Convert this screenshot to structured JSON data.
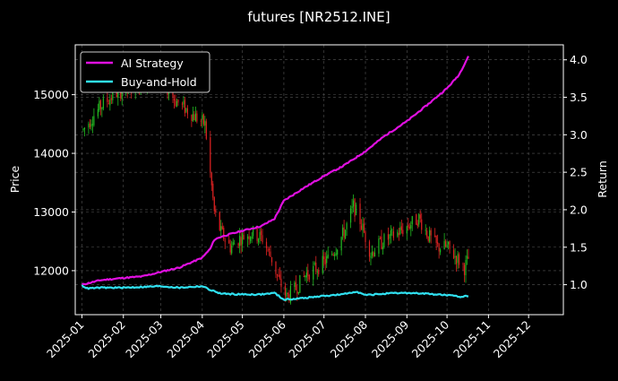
{
  "chart_data": {
    "type": "candlestick+line",
    "title": "futures [NR2512.INE]",
    "ylabel_left": "Price",
    "ylabel_right": "Return",
    "x_ticks": [
      "2025-01",
      "2025-02",
      "2025-03",
      "2025-04",
      "2025-05",
      "2025-06",
      "2025-07",
      "2025-08",
      "2025-09",
      "2025-10",
      "2025-11",
      "2025-12"
    ],
    "xlim": [
      "2024-12-27",
      "2025-12-27"
    ],
    "ylim_left": [
      11250,
      15850
    ],
    "yticks_left": [
      12000,
      13000,
      14000,
      15000
    ],
    "ylim_right": [
      0.6,
      4.2
    ],
    "yticks_right": [
      1.0,
      1.5,
      2.0,
      2.5,
      3.0,
      3.5,
      4.0
    ],
    "grid": true,
    "legend_position": "top-left",
    "colors": {
      "up": "#22bb22",
      "down": "#dd2222",
      "ai": "#e010e0",
      "bh": "#30e0f0",
      "grid": "#555555"
    },
    "price_anchors": [
      [
        "2025-01-02",
        14400
      ],
      [
        "2025-01-10",
        14650
      ],
      [
        "2025-01-15",
        14800
      ],
      [
        "2025-01-20",
        14900
      ],
      [
        "2025-01-28",
        15050
      ],
      [
        "2025-02-05",
        15100
      ],
      [
        "2025-02-15",
        15200
      ],
      [
        "2025-02-25",
        15300
      ],
      [
        "2025-03-05",
        15150
      ],
      [
        "2025-03-12",
        14900
      ],
      [
        "2025-03-20",
        14750
      ],
      [
        "2025-03-28",
        14600
      ],
      [
        "2025-04-03",
        14500
      ],
      [
        "2025-04-07",
        13650
      ],
      [
        "2025-04-10",
        13000
      ],
      [
        "2025-04-15",
        12650
      ],
      [
        "2025-04-22",
        12400
      ],
      [
        "2025-04-29",
        12550
      ],
      [
        "2025-05-08",
        12650
      ],
      [
        "2025-05-16",
        12550
      ],
      [
        "2025-05-23",
        12200
      ],
      [
        "2025-05-28",
        11850
      ],
      [
        "2025-06-03",
        11550
      ],
      [
        "2025-06-10",
        11700
      ],
      [
        "2025-06-18",
        11950
      ],
      [
        "2025-06-26",
        12050
      ],
      [
        "2025-07-04",
        12200
      ],
      [
        "2025-07-10",
        12400
      ],
      [
        "2025-07-17",
        12700
      ],
      [
        "2025-07-23",
        13100
      ],
      [
        "2025-07-28",
        12850
      ],
      [
        "2025-08-05",
        12300
      ],
      [
        "2025-08-14",
        12500
      ],
      [
        "2025-08-22",
        12600
      ],
      [
        "2025-09-01",
        12750
      ],
      [
        "2025-09-10",
        12900
      ],
      [
        "2025-09-17",
        12600
      ],
      [
        "2025-09-24",
        12400
      ],
      [
        "2025-10-01",
        12400
      ],
      [
        "2025-10-09",
        12200
      ],
      [
        "2025-10-14",
        12050
      ],
      [
        "2025-10-17",
        12200
      ]
    ],
    "series": [
      {
        "name": "AI Strategy",
        "points": [
          [
            "2025-01-01",
            1.0
          ],
          [
            "2025-01-15",
            1.06
          ],
          [
            "2025-02-01",
            1.09
          ],
          [
            "2025-02-15",
            1.11
          ],
          [
            "2025-03-01",
            1.17
          ],
          [
            "2025-03-15",
            1.23
          ],
          [
            "2025-04-01",
            1.36
          ],
          [
            "2025-04-07",
            1.48
          ],
          [
            "2025-04-10",
            1.6
          ],
          [
            "2025-04-15",
            1.64
          ],
          [
            "2025-05-01",
            1.72
          ],
          [
            "2025-05-15",
            1.78
          ],
          [
            "2025-05-25",
            1.88
          ],
          [
            "2025-06-01",
            2.12
          ],
          [
            "2025-06-15",
            2.28
          ],
          [
            "2025-07-01",
            2.45
          ],
          [
            "2025-07-15",
            2.58
          ],
          [
            "2025-08-01",
            2.78
          ],
          [
            "2025-08-15",
            2.98
          ],
          [
            "2025-09-01",
            3.18
          ],
          [
            "2025-09-15",
            3.38
          ],
          [
            "2025-10-01",
            3.62
          ],
          [
            "2025-10-10",
            3.8
          ],
          [
            "2025-10-17",
            4.05
          ]
        ]
      },
      {
        "name": "Buy-and-Hold",
        "points": [
          [
            "2025-01-01",
            0.99
          ],
          [
            "2025-01-05",
            0.95
          ],
          [
            "2025-01-15",
            0.96
          ],
          [
            "2025-02-01",
            0.96
          ],
          [
            "2025-02-15",
            0.97
          ],
          [
            "2025-03-01",
            0.98
          ],
          [
            "2025-03-15",
            0.96
          ],
          [
            "2025-04-01",
            0.98
          ],
          [
            "2025-04-07",
            0.93
          ],
          [
            "2025-04-15",
            0.88
          ],
          [
            "2025-05-01",
            0.87
          ],
          [
            "2025-05-15",
            0.87
          ],
          [
            "2025-05-25",
            0.89
          ],
          [
            "2025-06-01",
            0.8
          ],
          [
            "2025-06-15",
            0.82
          ],
          [
            "2025-07-01",
            0.85
          ],
          [
            "2025-07-15",
            0.87
          ],
          [
            "2025-07-25",
            0.91
          ],
          [
            "2025-08-01",
            0.86
          ],
          [
            "2025-08-15",
            0.88
          ],
          [
            "2025-09-01",
            0.89
          ],
          [
            "2025-09-15",
            0.88
          ],
          [
            "2025-10-01",
            0.86
          ],
          [
            "2025-10-10",
            0.84
          ],
          [
            "2025-10-17",
            0.85
          ]
        ]
      }
    ]
  }
}
